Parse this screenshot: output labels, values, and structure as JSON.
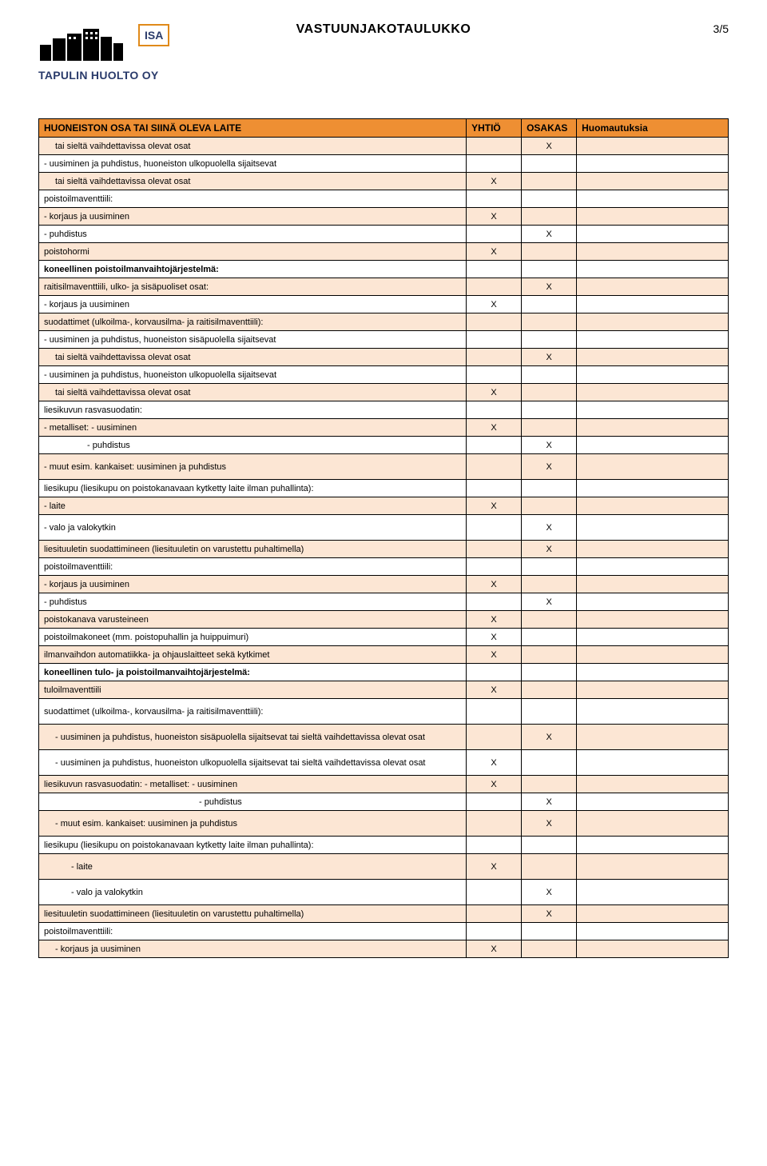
{
  "doc": {
    "title": "VASTUUNJAKOTAULUKKO",
    "page_number": "3/5",
    "isa_label": "ISA",
    "company": "TAPULIN HUOLTO OY"
  },
  "colors": {
    "header_bg": "#ee8f33",
    "zebra_bg": "#fce6d4",
    "plain_bg": "#ffffff",
    "border": "#000000",
    "logo_blue": "#2a3b6b",
    "isa_border": "#e08a1a"
  },
  "headers": {
    "h1": "HUONEISTON OSA TAI SIINÄ OLEVA LAITE",
    "h2": "YHTIÖ",
    "h3": "OSAKAS",
    "h4": "Huomautuksia"
  },
  "rows": [
    {
      "zebra": true,
      "indent": 1,
      "label": "tai sieltä vaihdettavissa olevat osat",
      "yhtio": "",
      "osakas": "X"
    },
    {
      "zebra": false,
      "indent": 0,
      "label": "- uusiminen ja puhdistus, huoneiston ulkopuolella sijaitsevat",
      "yhtio": "",
      "osakas": ""
    },
    {
      "zebra": true,
      "indent": 1,
      "label": "tai sieltä vaihdettavissa olevat osat",
      "yhtio": "X",
      "osakas": ""
    },
    {
      "zebra": false,
      "indent": 0,
      "label": "poistoilmaventtiili:",
      "yhtio": "",
      "osakas": ""
    },
    {
      "zebra": true,
      "indent": 0,
      "label": "- korjaus ja uusiminen",
      "yhtio": "X",
      "osakas": ""
    },
    {
      "zebra": false,
      "indent": 0,
      "label": "- puhdistus",
      "yhtio": "",
      "osakas": "X"
    },
    {
      "zebra": true,
      "indent": 0,
      "label": "poistohormi",
      "yhtio": "X",
      "osakas": ""
    },
    {
      "zebra": false,
      "indent": 0,
      "bold": true,
      "label": "koneellinen poistoilmanvaihtojärjestelmä:",
      "yhtio": "",
      "osakas": ""
    },
    {
      "zebra": true,
      "indent": 0,
      "label": "raitisilmaventtiili, ulko- ja sisäpuoliset osat:",
      "yhtio": "",
      "osakas": "X"
    },
    {
      "zebra": false,
      "indent": 0,
      "label": "- korjaus ja uusiminen",
      "yhtio": "X",
      "osakas": ""
    },
    {
      "zebra": true,
      "indent": 0,
      "label": "suodattimet (ulkoilma-, korvausilma- ja raitisilmaventtiili):",
      "yhtio": "",
      "osakas": ""
    },
    {
      "zebra": false,
      "indent": 0,
      "label": "- uusiminen ja puhdistus, huoneiston sisäpuolella sijaitsevat",
      "yhtio": "",
      "osakas": ""
    },
    {
      "zebra": true,
      "indent": 1,
      "label": "tai sieltä vaihdettavissa olevat osat",
      "yhtio": "",
      "osakas": "X"
    },
    {
      "zebra": false,
      "indent": 0,
      "label": "- uusiminen ja puhdistus, huoneiston ulkopuolella sijaitsevat",
      "yhtio": "",
      "osakas": ""
    },
    {
      "zebra": true,
      "indent": 1,
      "label": "tai sieltä vaihdettavissa olevat osat",
      "yhtio": "X",
      "osakas": ""
    },
    {
      "zebra": false,
      "indent": 0,
      "label": "liesikuvun rasvasuodatin:",
      "yhtio": "",
      "osakas": ""
    },
    {
      "zebra": true,
      "indent": 0,
      "label": "- metalliset: - uusiminen",
      "yhtio": "X",
      "osakas": ""
    },
    {
      "zebra": false,
      "indent": 3,
      "label": "- puhdistus",
      "yhtio": "",
      "osakas": "X"
    },
    {
      "zebra": true,
      "indent": 0,
      "tall": true,
      "label": "- muut esim. kankaiset: uusiminen ja puhdistus",
      "yhtio": "",
      "osakas": "X"
    },
    {
      "zebra": false,
      "indent": 0,
      "label": "liesikupu (liesikupu on poistokanavaan kytketty laite ilman puhallinta):",
      "yhtio": "",
      "osakas": ""
    },
    {
      "zebra": true,
      "indent": 0,
      "label": "- laite",
      "yhtio": "X",
      "osakas": ""
    },
    {
      "zebra": false,
      "indent": 0,
      "tall": true,
      "label": "- valo ja valokytkin",
      "yhtio": "",
      "osakas": "X"
    },
    {
      "zebra": true,
      "indent": 0,
      "label": "liesituuletin suodattimineen (liesituuletin on varustettu puhaltimella)",
      "yhtio": "",
      "osakas": "X"
    },
    {
      "zebra": false,
      "indent": 0,
      "label": "poistoilmaventtiili:",
      "yhtio": "",
      "osakas": ""
    },
    {
      "zebra": true,
      "indent": 0,
      "label": "- korjaus ja uusiminen",
      "yhtio": "X",
      "osakas": ""
    },
    {
      "zebra": false,
      "indent": 0,
      "label": "- puhdistus",
      "yhtio": "",
      "osakas": "X"
    },
    {
      "zebra": true,
      "indent": 0,
      "label": "poistokanava varusteineen",
      "yhtio": "X",
      "osakas": ""
    },
    {
      "zebra": false,
      "indent": 0,
      "label": "poistoilmakoneet (mm. poistopuhallin ja huippuimuri)",
      "yhtio": "X",
      "osakas": ""
    },
    {
      "zebra": true,
      "indent": 0,
      "label": "ilmanvaihdon automatiikka- ja ohjauslaitteet sekä kytkimet",
      "yhtio": "X",
      "osakas": ""
    },
    {
      "zebra": false,
      "indent": 0,
      "bold": true,
      "label": "koneellinen tulo- ja poistoilmanvaihtojärjestelmä:",
      "yhtio": "",
      "osakas": ""
    },
    {
      "zebra": true,
      "indent": 0,
      "label": "tuloilmaventtiili",
      "yhtio": "X",
      "osakas": ""
    },
    {
      "zebra": false,
      "indent": 0,
      "tall": true,
      "label": "suodattimet (ulkoilma-, korvausilma- ja raitisilmaventtiili):",
      "yhtio": "",
      "osakas": ""
    },
    {
      "zebra": true,
      "indent": 1,
      "tall": true,
      "label": "- uusiminen ja puhdistus, huoneiston sisäpuolella sijaitsevat  tai sieltä vaihdettavissa olevat osat",
      "yhtio": "",
      "osakas": "X"
    },
    {
      "zebra": false,
      "indent": 1,
      "tall": true,
      "label": "- uusiminen ja puhdistus, huoneiston ulkopuolella sijaitsevat  tai sieltä vaihdettavissa olevat osat",
      "yhtio": "X",
      "osakas": ""
    },
    {
      "zebra": true,
      "indent": 0,
      "label": "liesikuvun rasvasuodatin:  - metalliset: - uusiminen",
      "yhtio": "X",
      "osakas": ""
    },
    {
      "zebra": false,
      "indent": 99,
      "label": "- puhdistus",
      "yhtio": "",
      "osakas": "X"
    },
    {
      "zebra": true,
      "indent": 1,
      "tall": true,
      "label": "- muut esim. kankaiset: uusiminen ja puhdistus",
      "yhtio": "",
      "osakas": "X"
    },
    {
      "zebra": false,
      "indent": 0,
      "label": "liesikupu (liesikupu on poistokanavaan kytketty laite ilman puhallinta):",
      "yhtio": "",
      "osakas": ""
    },
    {
      "zebra": true,
      "indent": 2,
      "tall": true,
      "label": "- laite",
      "yhtio": "X",
      "osakas": ""
    },
    {
      "zebra": false,
      "indent": 2,
      "tall": true,
      "label": "- valo ja valokytkin",
      "yhtio": "",
      "osakas": "X"
    },
    {
      "zebra": true,
      "indent": 0,
      "label": "liesituuletin suodattimineen (liesituuletin on varustettu puhaltimella)",
      "yhtio": "",
      "osakas": "X"
    },
    {
      "zebra": false,
      "indent": 0,
      "label": "poistoilmaventtiili:",
      "yhtio": "",
      "osakas": ""
    },
    {
      "zebra": true,
      "indent": 1,
      "label": "- korjaus ja uusiminen",
      "yhtio": "X",
      "osakas": ""
    }
  ]
}
